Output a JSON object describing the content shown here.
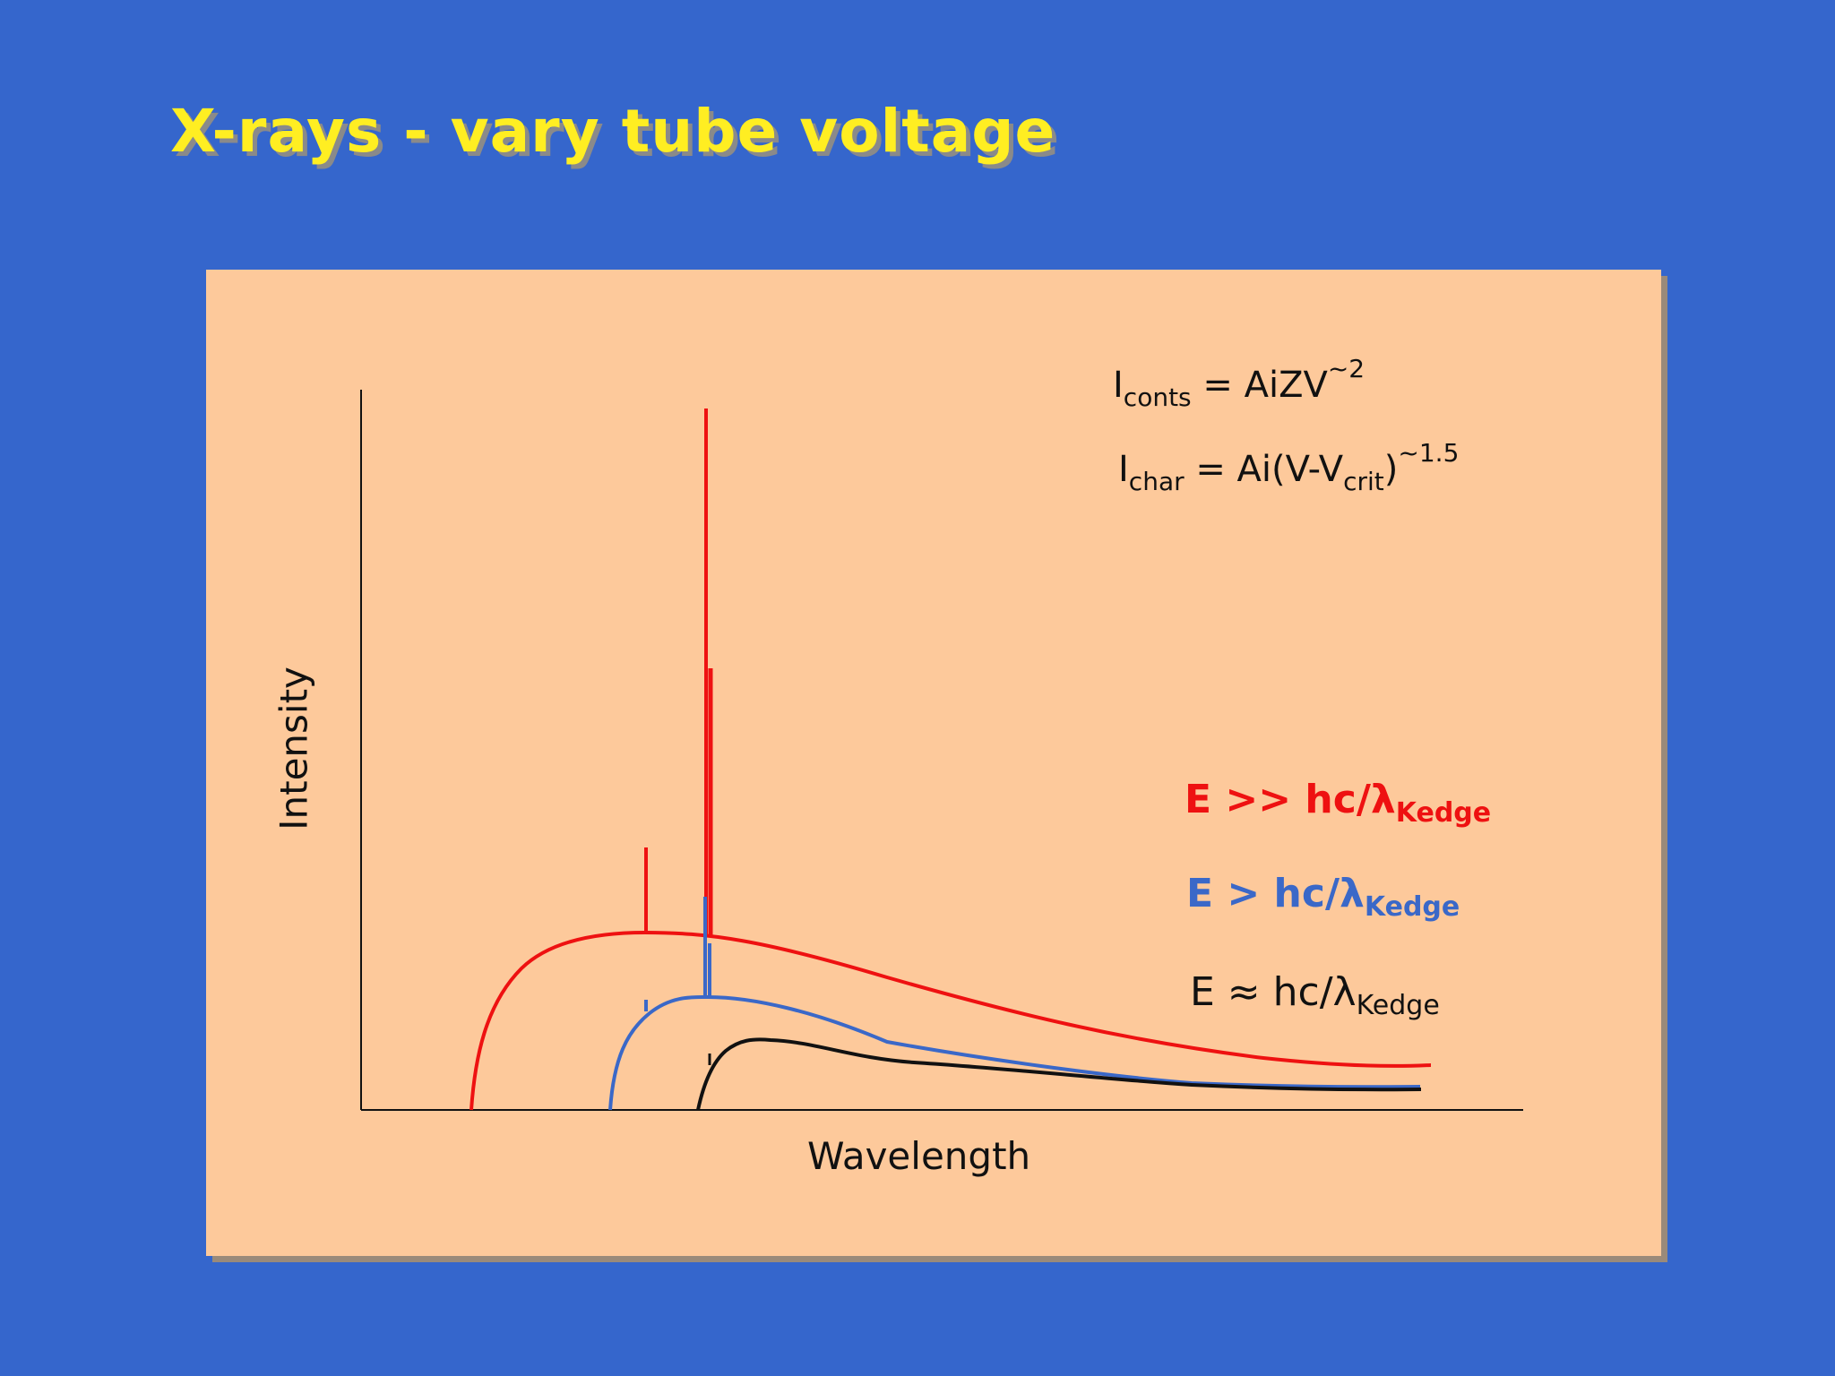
{
  "slide": {
    "title": "X-rays - vary tube voltage",
    "background_color": "#3566cc",
    "title_color": "#ffee22",
    "panel_color": "#fdc99b"
  },
  "equations": {
    "continuous": {
      "base": "I",
      "subscript": "conts",
      "rhs": " = AiZV",
      "exponent": "~2"
    },
    "characteristic": {
      "base": "I",
      "subscript": "char",
      "rhs_prefix": " = Ai(V-V",
      "rhs_subscript": "crit",
      "rhs_suffix": ")",
      "exponent": "~1.5"
    }
  },
  "axes": {
    "x_label": "Wavelength",
    "y_label": "Intensity"
  },
  "legend": [
    {
      "prefix": "E >> hc/",
      "symbol": "λ",
      "subscript": "Kedge",
      "color": "#ee1111",
      "bold": true
    },
    {
      "prefix": "E > hc/",
      "symbol": "λ",
      "subscript": "Kedge",
      "color": "#3a68c8",
      "bold": true
    },
    {
      "prefix": "E ≈ hc/",
      "symbol": "λ",
      "subscript": "Kedge",
      "color": "#111111",
      "bold": false
    }
  ],
  "curves": [
    {
      "name": "E >> hc/λKedge",
      "color": "#ee1111"
    },
    {
      "name": "E > hc/λKedge",
      "color": "#3a68c8"
    },
    {
      "name": "E ≈ hc/λKedge",
      "color": "#111111"
    }
  ]
}
